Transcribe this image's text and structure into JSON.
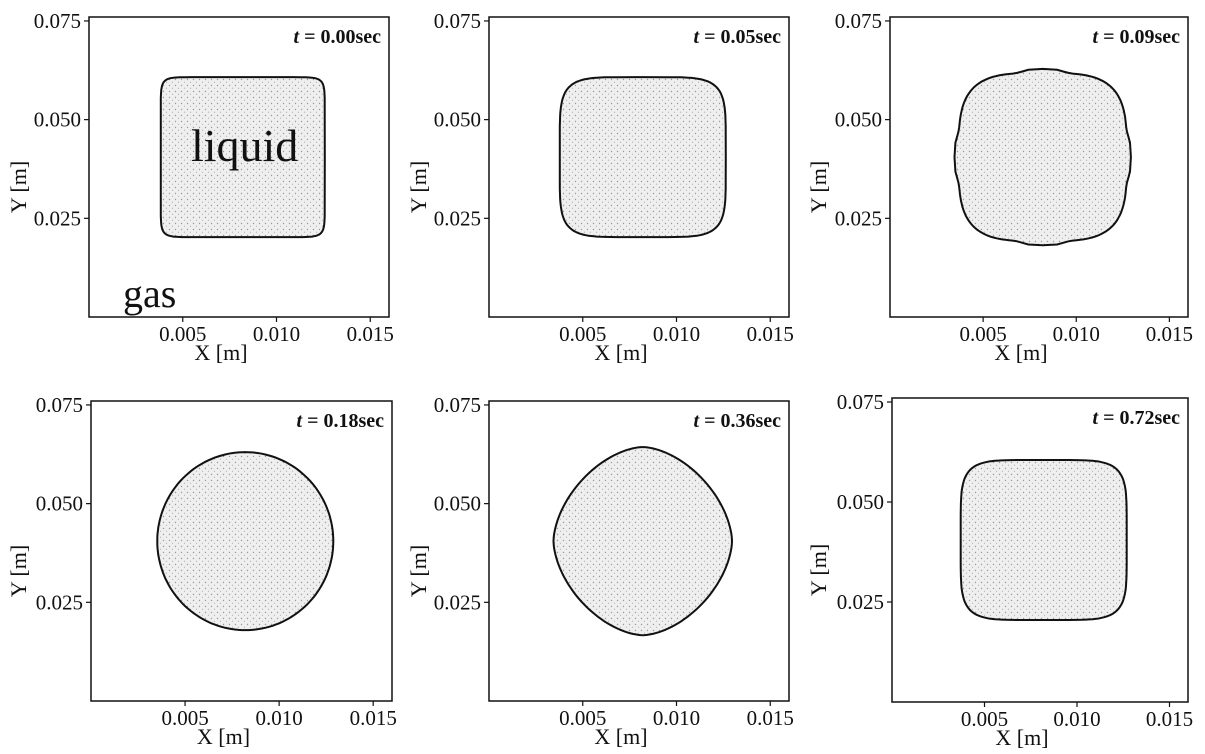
{
  "chart_data": {
    "type": "scatter",
    "xlabel": "X [m]",
    "ylabel": "Y [m]",
    "xlim": [
      0.0,
      0.016
    ],
    "ylim": [
      0.0,
      0.076
    ],
    "x_ticks": [
      "0.005",
      "0.010",
      "0.015"
    ],
    "y_ticks": [
      "0.075",
      "0.050",
      "0.025"
    ],
    "time_prefix": "t",
    "time_unit": "sec",
    "panels": [
      {
        "time": "0.00",
        "shape": "square",
        "labels": {
          "liquid": "liquid",
          "gas": "gas"
        }
      },
      {
        "time": "0.05",
        "shape": "rounded-square"
      },
      {
        "time": "0.09",
        "shape": "cusped-square"
      },
      {
        "time": "0.18",
        "shape": "circle"
      },
      {
        "time": "0.36",
        "shape": "diamond"
      },
      {
        "time": "0.72",
        "shape": "rounded-square"
      }
    ]
  }
}
